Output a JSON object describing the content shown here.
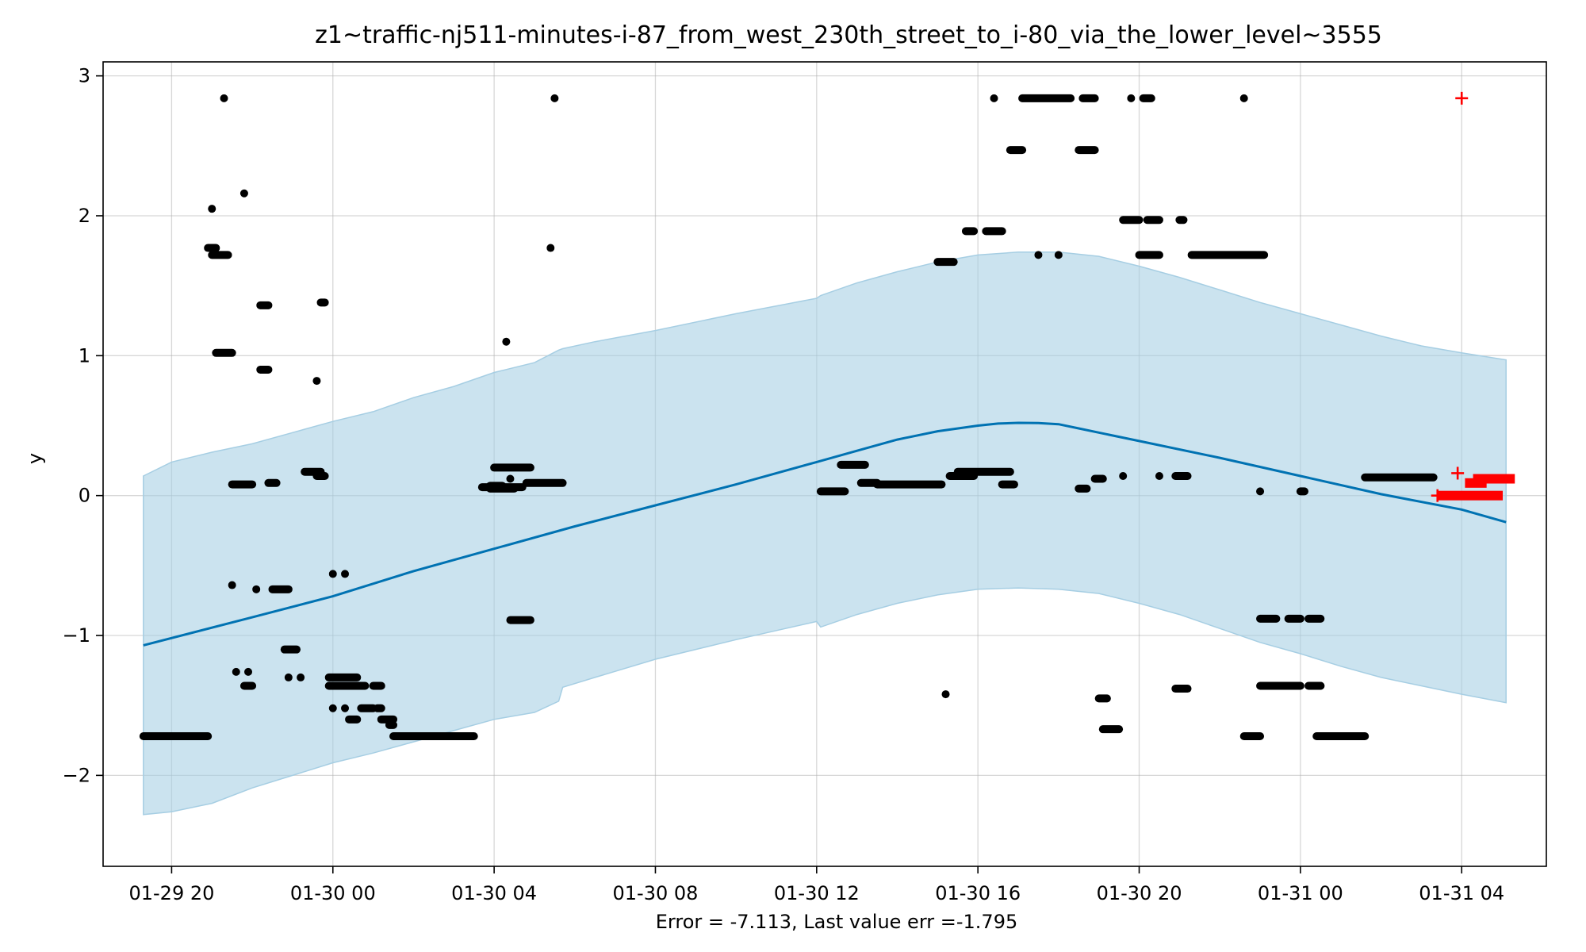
{
  "chart_data": {
    "type": "scatter",
    "title": "z1~traffic-nj511-minutes-i-87_from_west_230th_street_to_i-80_via_the_lower_level~3555",
    "xlabel": "Error = -7.113, Last value err =-1.795",
    "ylabel": "y",
    "x_tick_labels": [
      "01-29 20",
      "01-30 00",
      "01-30 04",
      "01-30 08",
      "01-30 12",
      "01-30 16",
      "01-30 20",
      "01-31 00",
      "01-31 04"
    ],
    "x_tick_values_hours": [
      20,
      24,
      28,
      32,
      36,
      40,
      44,
      48,
      52
    ],
    "y_tick_labels": [
      "−2",
      "−1",
      "0",
      "1",
      "2",
      "3"
    ],
    "y_tick_values": [
      -2,
      -1,
      0,
      1,
      2,
      3
    ],
    "xlim_hours": [
      18.3,
      54.1
    ],
    "ylim": [
      -2.65,
      3.1
    ],
    "grid": true,
    "colors": {
      "forecast": "#0072B2",
      "band": "#A6CEE3",
      "observed": "#000000",
      "test": "#FF0000"
    },
    "forecast_line": {
      "x_hours": [
        19.3,
        22,
        24,
        26,
        28,
        30,
        32,
        34,
        36,
        37,
        38,
        39,
        40,
        40.5,
        41,
        41.5,
        42,
        42.5,
        43,
        44,
        46,
        48,
        50,
        52,
        53.1
      ],
      "y": [
        -1.07,
        -0.87,
        -0.72,
        -0.54,
        -0.38,
        -0.22,
        -0.07,
        0.08,
        0.24,
        0.32,
        0.4,
        0.46,
        0.5,
        0.515,
        0.52,
        0.518,
        0.51,
        0.48,
        0.45,
        0.39,
        0.27,
        0.14,
        0.01,
        -0.1,
        -0.19
      ]
    },
    "band": {
      "x_hours": [
        19.3,
        20,
        21,
        22,
        23,
        24,
        25,
        26,
        27,
        28,
        29,
        29.6,
        29.7,
        30.5,
        32,
        34,
        36,
        36.1,
        37,
        38,
        39,
        40,
        41,
        42,
        43,
        44,
        45,
        46,
        47,
        48,
        49,
        50,
        51,
        52,
        53.1
      ],
      "upper": [
        0.14,
        0.24,
        0.31,
        0.37,
        0.45,
        0.53,
        0.6,
        0.7,
        0.78,
        0.88,
        0.95,
        1.04,
        1.05,
        1.1,
        1.18,
        1.3,
        1.41,
        1.43,
        1.52,
        1.6,
        1.67,
        1.72,
        1.74,
        1.74,
        1.71,
        1.64,
        1.56,
        1.47,
        1.38,
        1.3,
        1.22,
        1.14,
        1.07,
        1.02,
        0.97
      ],
      "lower": [
        -2.28,
        -2.26,
        -2.2,
        -2.09,
        -2.0,
        -1.91,
        -1.84,
        -1.76,
        -1.68,
        -1.6,
        -1.55,
        -1.47,
        -1.37,
        -1.3,
        -1.17,
        -1.03,
        -0.9,
        -0.94,
        -0.85,
        -0.77,
        -0.71,
        -0.67,
        -0.66,
        -0.67,
        -0.7,
        -0.77,
        -0.85,
        -0.95,
        -1.05,
        -1.13,
        -1.22,
        -1.3,
        -1.36,
        -1.42,
        -1.48
      ]
    },
    "observed_segments": [
      [
        19.3,
        20.9,
        -1.72
      ],
      [
        21.1,
        21.5,
        1.02
      ],
      [
        20.9,
        21.1,
        1.77
      ],
      [
        21.0,
        21.4,
        1.72
      ],
      [
        21.0,
        21.0,
        2.05
      ],
      [
        21.3,
        21.3,
        2.84
      ],
      [
        21.5,
        21.5,
        -0.64
      ],
      [
        21.5,
        22.0,
        0.08
      ],
      [
        21.8,
        21.8,
        2.16
      ],
      [
        21.6,
        21.6,
        -1.26
      ],
      [
        21.8,
        22.0,
        -1.36
      ],
      [
        21.9,
        21.9,
        -1.26
      ],
      [
        22.1,
        22.1,
        -0.67
      ],
      [
        22.2,
        22.4,
        1.36
      ],
      [
        22.2,
        22.4,
        0.9
      ],
      [
        22.4,
        22.6,
        0.09
      ],
      [
        22.5,
        22.9,
        -0.67
      ],
      [
        22.8,
        23.1,
        -1.1
      ],
      [
        22.9,
        22.9,
        -1.3
      ],
      [
        23.2,
        23.2,
        -1.3
      ],
      [
        23.3,
        23.7,
        0.17
      ],
      [
        23.6,
        23.8,
        0.14
      ],
      [
        23.6,
        23.6,
        0.82
      ],
      [
        23.7,
        23.8,
        1.38
      ],
      [
        24.0,
        24.0,
        -0.56
      ],
      [
        24.3,
        24.3,
        -0.56
      ],
      [
        23.9,
        24.6,
        -1.3
      ],
      [
        23.9,
        24.6,
        -1.36
      ],
      [
        24.0,
        24.0,
        -1.52
      ],
      [
        24.4,
        24.6,
        -1.6
      ],
      [
        24.3,
        24.3,
        -1.52
      ],
      [
        24.5,
        24.8,
        -1.36
      ],
      [
        24.7,
        25.0,
        -1.52
      ],
      [
        25.0,
        25.2,
        -1.36
      ],
      [
        25.1,
        25.2,
        -1.52
      ],
      [
        25.2,
        25.5,
        -1.6
      ],
      [
        25.4,
        25.5,
        -1.64
      ],
      [
        25.5,
        27.5,
        -1.72
      ],
      [
        27.7,
        28.7,
        0.06
      ],
      [
        27.9,
        28.2,
        0.07
      ],
      [
        27.9,
        28.5,
        0.05
      ],
      [
        28.0,
        28.9,
        0.2
      ],
      [
        28.3,
        28.3,
        1.1
      ],
      [
        28.4,
        28.4,
        0.12
      ],
      [
        28.4,
        28.9,
        -0.89
      ],
      [
        28.8,
        29.7,
        0.09
      ],
      [
        29.4,
        29.4,
        1.77
      ],
      [
        29.5,
        29.5,
        2.84
      ],
      [
        36.1,
        36.7,
        0.03
      ],
      [
        36.6,
        37.2,
        0.22
      ],
      [
        37.1,
        37.5,
        0.09
      ],
      [
        37.5,
        39.1,
        0.08
      ],
      [
        39.0,
        39.4,
        1.67
      ],
      [
        39.2,
        39.2,
        -1.42
      ],
      [
        39.3,
        39.9,
        0.14
      ],
      [
        39.5,
        40.8,
        0.17
      ],
      [
        39.7,
        39.9,
        1.89
      ],
      [
        40.2,
        40.6,
        1.89
      ],
      [
        40.6,
        40.9,
        0.08
      ],
      [
        40.4,
        40.4,
        2.84
      ],
      [
        40.8,
        41.1,
        2.47
      ],
      [
        41.1,
        42.3,
        2.84
      ],
      [
        41.5,
        41.5,
        1.72
      ],
      [
        42.0,
        42.0,
        1.72
      ],
      [
        42.5,
        42.9,
        2.47
      ],
      [
        42.6,
        42.9,
        2.84
      ],
      [
        42.5,
        42.7,
        0.05
      ],
      [
        42.9,
        43.1,
        0.12
      ],
      [
        43.0,
        43.2,
        -1.45
      ],
      [
        43.1,
        43.5,
        -1.67
      ],
      [
        43.6,
        43.6,
        0.14
      ],
      [
        43.6,
        44.0,
        1.97
      ],
      [
        43.8,
        43.8,
        2.84
      ],
      [
        44.0,
        44.5,
        1.72
      ],
      [
        44.1,
        44.3,
        2.84
      ],
      [
        44.2,
        44.5,
        1.97
      ],
      [
        44.5,
        44.5,
        0.14
      ],
      [
        44.9,
        45.2,
        0.14
      ],
      [
        44.9,
        45.2,
        -1.38
      ],
      [
        45.0,
        45.1,
        1.97
      ],
      [
        45.3,
        47.1,
        1.72
      ],
      [
        46.6,
        46.6,
        2.84
      ],
      [
        46.6,
        47.0,
        -1.72
      ],
      [
        47.0,
        47.0,
        0.03
      ],
      [
        47.0,
        47.4,
        -0.88
      ],
      [
        47.0,
        47.9,
        -1.36
      ],
      [
        47.7,
        48.0,
        -0.88
      ],
      [
        47.7,
        48.0,
        -1.36
      ],
      [
        48.0,
        48.1,
        0.03
      ],
      [
        48.2,
        48.5,
        -0.88
      ],
      [
        48.2,
        48.5,
        -1.36
      ],
      [
        48.3,
        48.5,
        -1.36
      ],
      [
        48.4,
        48.8,
        -1.72
      ],
      [
        48.6,
        49.6,
        -1.72
      ],
      [
        49.6,
        51.3,
        0.13
      ]
    ],
    "test_segments": [
      [
        51.4,
        51.4,
        0.0
      ],
      [
        51.5,
        52.9,
        0.0
      ],
      [
        51.9,
        51.9,
        0.16
      ],
      [
        52.0,
        52.0,
        2.84
      ],
      [
        52.2,
        52.5,
        0.09
      ],
      [
        52.4,
        53.2,
        0.12
      ]
    ]
  }
}
